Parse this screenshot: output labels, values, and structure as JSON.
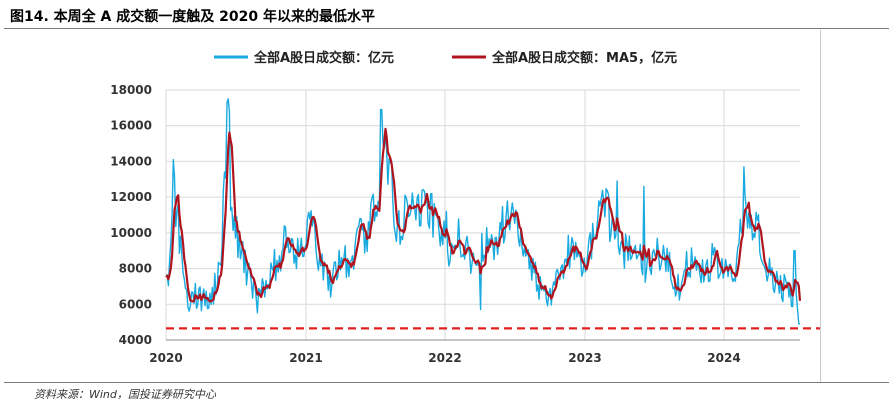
{
  "figure": {
    "title": "图14. 本周全 A 成交额一度触及 2020 年以来的最低水平",
    "source": "资料来源：Wind，国投证券研究中心"
  },
  "colors": {
    "daily": "#19aadf",
    "ma5": "#b0141e",
    "threshold": "#e02020",
    "grid": "#d9d9d9"
  },
  "chart_data": {
    "type": "line",
    "title": "",
    "xlabel": "",
    "ylabel": "",
    "ylim": [
      4000,
      18000
    ],
    "xlim": [
      2020.0,
      2024.55
    ],
    "y_ticks": [
      "4000",
      "6000",
      "8000",
      "10000",
      "12000",
      "14000",
      "16000",
      "18000"
    ],
    "x_ticks": [
      "2020",
      "2021",
      "2022",
      "2023",
      "2024"
    ],
    "legend": [
      "全部A股日成交额：亿元",
      "全部A股日成交额：MA5，亿元"
    ],
    "threshold_line": {
      "value": 4650,
      "style": "dashed"
    },
    "anchors": [
      [
        2020.0,
        6800
      ],
      [
        2020.02,
        8000
      ],
      [
        2020.04,
        9800
      ],
      [
        2020.06,
        12000
      ],
      [
        2020.08,
        11000
      ],
      [
        2020.1,
        9800
      ],
      [
        2020.12,
        8200
      ],
      [
        2020.14,
        7000
      ],
      [
        2020.16,
        6200
      ],
      [
        2020.2,
        6500
      ],
      [
        2020.24,
        6300
      ],
      [
        2020.28,
        6600
      ],
      [
        2020.31,
        6200
      ],
      [
        2020.34,
        6800
      ],
      [
        2020.37,
        7500
      ],
      [
        2020.39,
        8500
      ],
      [
        2020.41,
        11000
      ],
      [
        2020.43,
        15000
      ],
      [
        2020.445,
        16300
      ],
      [
        2020.46,
        13000
      ],
      [
        2020.48,
        11000
      ],
      [
        2020.5,
        10000
      ],
      [
        2020.53,
        9500
      ],
      [
        2020.56,
        8200
      ],
      [
        2020.59,
        7800
      ],
      [
        2020.62,
        7000
      ],
      [
        2020.65,
        6200
      ],
      [
        2020.68,
        6500
      ],
      [
        2020.72,
        7200
      ],
      [
        2020.76,
        7800
      ],
      [
        2020.8,
        8500
      ],
      [
        2020.84,
        9000
      ],
      [
        2020.87,
        10000
      ],
      [
        2020.9,
        9500
      ],
      [
        2020.93,
        8800
      ],
      [
        2020.96,
        9200
      ],
      [
        2021.0,
        9500
      ],
      [
        2021.03,
        11000
      ],
      [
        2021.06,
        10500
      ],
      [
        2021.09,
        9000
      ],
      [
        2021.12,
        8000
      ],
      [
        2021.15,
        7500
      ],
      [
        2021.18,
        7000
      ],
      [
        2021.22,
        7800
      ],
      [
        2021.26,
        8500
      ],
      [
        2021.3,
        8200
      ],
      [
        2021.34,
        8800
      ],
      [
        2021.37,
        9500
      ],
      [
        2021.4,
        10000
      ],
      [
        2021.43,
        9800
      ],
      [
        2021.46,
        10500
      ],
      [
        2021.49,
        11500
      ],
      [
        2021.52,
        12000
      ],
      [
        2021.54,
        13500
      ],
      [
        2021.56,
        15500
      ],
      [
        2021.58,
        14500
      ],
      [
        2021.6,
        13000
      ],
      [
        2021.62,
        12500
      ],
      [
        2021.64,
        11500
      ],
      [
        2021.66,
        10200
      ],
      [
        2021.7,
        10500
      ],
      [
        2021.74,
        11500
      ],
      [
        2021.78,
        11800
      ],
      [
        2021.82,
        11500
      ],
      [
        2021.86,
        11800
      ],
      [
        2021.9,
        11200
      ],
      [
        2021.94,
        10500
      ],
      [
        2021.97,
        10000
      ],
      [
        2022.0,
        9500
      ],
      [
        2022.03,
        8500
      ],
      [
        2022.06,
        9000
      ],
      [
        2022.09,
        9800
      ],
      [
        2022.12,
        9500
      ],
      [
        2022.15,
        9000
      ],
      [
        2022.18,
        8500
      ],
      [
        2022.22,
        8000
      ],
      [
        2022.26,
        8800
      ],
      [
        2022.3,
        9500
      ],
      [
        2022.34,
        9000
      ],
      [
        2022.38,
        9800
      ],
      [
        2022.42,
        10500
      ],
      [
        2022.46,
        11000
      ],
      [
        2022.5,
        10500
      ],
      [
        2022.54,
        9800
      ],
      [
        2022.58,
        9000
      ],
      [
        2022.62,
        8000
      ],
      [
        2022.66,
        7500
      ],
      [
        2022.7,
        6500
      ],
      [
        2022.74,
        6200
      ],
      [
        2022.78,
        7000
      ],
      [
        2022.82,
        7800
      ],
      [
        2022.86,
        8500
      ],
      [
        2022.9,
        9000
      ],
      [
        2022.94,
        8500
      ],
      [
        2022.97,
        8000
      ],
      [
        2023.0,
        8200
      ],
      [
        2023.04,
        9000
      ],
      [
        2023.08,
        10500
      ],
      [
        2023.12,
        11000
      ],
      [
        2023.16,
        11200
      ],
      [
        2023.2,
        10500
      ],
      [
        2023.24,
        9500
      ],
      [
        2023.28,
        8800
      ],
      [
        2023.32,
        9000
      ],
      [
        2023.36,
        9500
      ],
      [
        2023.4,
        8500
      ],
      [
        2023.44,
        8000
      ],
      [
        2023.48,
        8200
      ],
      [
        2023.52,
        9000
      ],
      [
        2023.56,
        8800
      ],
      [
        2023.6,
        8200
      ],
      [
        2023.64,
        7500
      ],
      [
        2023.68,
        7000
      ],
      [
        2023.72,
        7800
      ],
      [
        2023.76,
        8500
      ],
      [
        2023.8,
        8200
      ],
      [
        2023.84,
        7800
      ],
      [
        2023.88,
        8000
      ],
      [
        2023.92,
        8500
      ],
      [
        2023.96,
        7800
      ],
      [
        2024.0,
        8000
      ],
      [
        2024.03,
        7800
      ],
      [
        2024.06,
        7200
      ],
      [
        2024.09,
        8000
      ],
      [
        2024.12,
        10000
      ],
      [
        2024.15,
        11200
      ],
      [
        2024.18,
        10800
      ],
      [
        2024.21,
        10000
      ],
      [
        2024.24,
        10500
      ],
      [
        2024.27,
        9500
      ],
      [
        2024.3,
        8500
      ],
      [
        2024.33,
        8000
      ],
      [
        2024.36,
        7500
      ],
      [
        2024.39,
        7000
      ],
      [
        2024.42,
        6800
      ],
      [
        2024.45,
        7200
      ],
      [
        2024.48,
        6500
      ],
      [
        2024.5,
        6000
      ],
      [
        2024.52,
        6200
      ],
      [
        2024.54,
        5200
      ]
    ],
    "spikes": [
      [
        2020.055,
        14100
      ],
      [
        2020.435,
        17300
      ],
      [
        2020.455,
        16800
      ],
      [
        2021.545,
        16900
      ],
      [
        2021.575,
        15600
      ],
      [
        2022.015,
        11200
      ],
      [
        2022.255,
        5700
      ],
      [
        2023.235,
        12900
      ],
      [
        2023.43,
        12600
      ],
      [
        2024.145,
        13700
      ],
      [
        2024.51,
        9000
      ],
      [
        2024.545,
        4900
      ]
    ]
  }
}
